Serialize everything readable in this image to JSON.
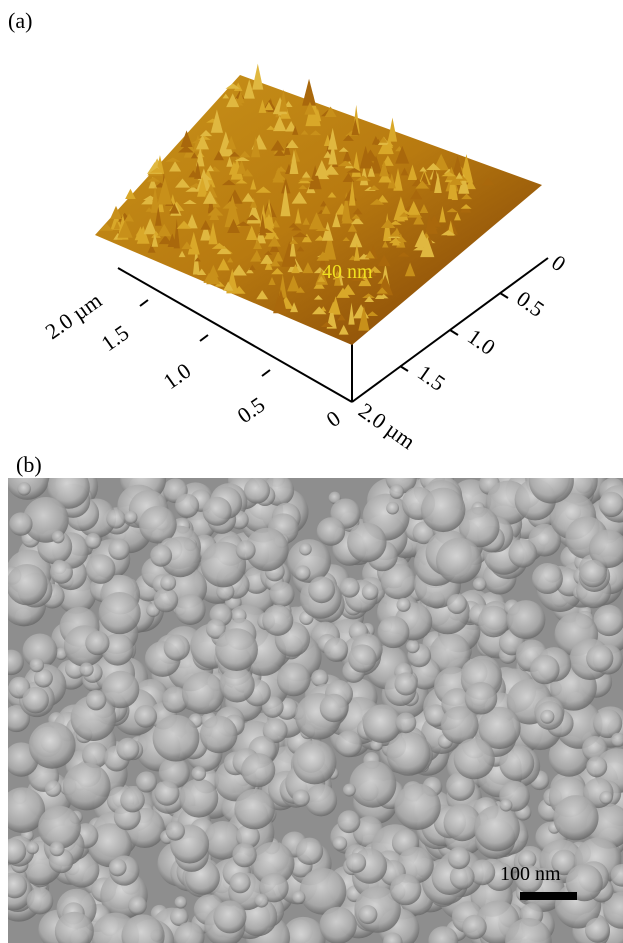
{
  "panel_a": {
    "label": "(a)",
    "z_label": "40 nm",
    "left_axis": {
      "ticks": [
        "2.0 µm",
        "1.5",
        "1.0",
        "0.5",
        "0"
      ]
    },
    "right_axis": {
      "ticks": [
        "0",
        "0.5",
        "1.0",
        "1.5",
        "2.0 µm"
      ]
    }
  },
  "panel_b": {
    "label": "(b)",
    "scale_bar": "100 nm"
  }
}
